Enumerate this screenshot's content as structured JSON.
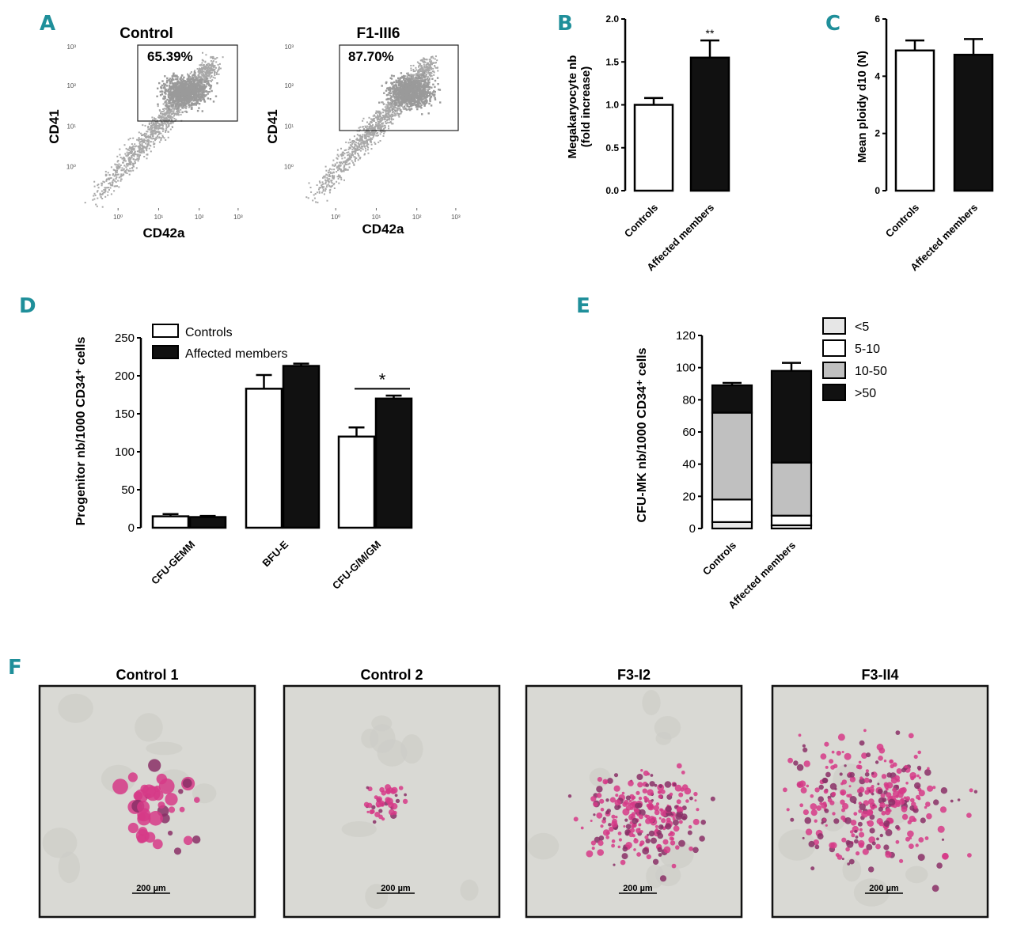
{
  "panel_labels": {
    "a": "A",
    "b": "B",
    "c": "C",
    "d": "D",
    "e": "E",
    "f": "F"
  },
  "colors": {
    "panel_label": "#1f8f9a",
    "controls": "#ffffff",
    "affected": "#111111",
    "e_lt5": "#e6e6e6",
    "e_5_10": "#ffffff",
    "e_10_50": "#c0c0c0",
    "e_gt50": "#111111",
    "stain": "#d63a87",
    "background_micro": "#d9d9d4"
  },
  "chart_data": [
    {
      "panel": "A",
      "type": "scatter",
      "plots": [
        {
          "title": "Control",
          "gate_percent": "65.39%",
          "xlabel": "CD42a",
          "ylabel": "CD41",
          "x_ticks": [
            "10⁰",
            "10¹",
            "10²",
            "10³"
          ],
          "y_ticks": [
            "10⁰",
            "10¹",
            "10²",
            "10³"
          ]
        },
        {
          "title": "F1-III6",
          "gate_percent": "87.70%",
          "xlabel": "CD42a",
          "ylabel": "CD41",
          "x_ticks": [
            "10⁰",
            "10¹",
            "10²",
            "10³"
          ],
          "y_ticks": [
            "10⁰",
            "10¹",
            "10²",
            "10³"
          ]
        }
      ]
    },
    {
      "panel": "B",
      "type": "bar",
      "categories": [
        "Controls",
        "Affected members"
      ],
      "values": [
        1.0,
        1.55
      ],
      "errors": [
        0.08,
        0.2
      ],
      "ylabel_line1": "Megakaryocyte nb",
      "ylabel_line2": "(fold increase)",
      "ylim": [
        0,
        2.0
      ],
      "y_ticks": [
        "0.0",
        "0.5",
        "1.0",
        "1.5",
        "2.0"
      ],
      "significance": "**"
    },
    {
      "panel": "C",
      "type": "bar",
      "categories": [
        "Controls",
        "Affected members"
      ],
      "values": [
        4.9,
        4.75
      ],
      "errors": [
        0.35,
        0.55
      ],
      "ylabel": "Mean ploidy d10 (N)",
      "ylim": [
        0,
        6
      ],
      "y_ticks": [
        "0",
        "2",
        "4",
        "6"
      ]
    },
    {
      "panel": "D",
      "type": "bar",
      "categories": [
        "CFU-GEMM",
        "BFU-E",
        "CFU-G/M/GM"
      ],
      "series": [
        {
          "name": "Controls",
          "values": [
            15,
            183,
            120
          ],
          "errors": [
            3,
            18,
            12
          ]
        },
        {
          "name": "Affected members",
          "values": [
            14,
            213,
            170
          ],
          "errors": [
            1.5,
            3,
            4
          ]
        }
      ],
      "ylabel": "Progenitor nb/1000 CD34⁺ cells",
      "ylim": [
        0,
        250
      ],
      "y_ticks": [
        "0",
        "50",
        "100",
        "150",
        "200",
        "250"
      ],
      "significance": "*"
    },
    {
      "panel": "E",
      "type": "bar",
      "stacked": true,
      "categories": [
        "Controls",
        "Affected members"
      ],
      "series": [
        {
          "name": "<5",
          "values": [
            4,
            2
          ]
        },
        {
          "name": "5-10",
          "values": [
            14,
            6
          ]
        },
        {
          "name": "10-50",
          "values": [
            54,
            33
          ]
        },
        {
          "name": ">50",
          "values": [
            17,
            57
          ]
        }
      ],
      "totals_errors": [
        1.5,
        5
      ],
      "ylabel": "CFU-MK nb/1000 CD34⁺ cells",
      "ylim": [
        0,
        120
      ],
      "y_ticks": [
        "0",
        "20",
        "40",
        "60",
        "80",
        "100",
        "120"
      ]
    }
  ],
  "micrographs": [
    {
      "title": "Control 1",
      "scale": "200 µm"
    },
    {
      "title": "Control 2",
      "scale": "200 µm"
    },
    {
      "title": "F3-I2",
      "scale": "200 µm"
    },
    {
      "title": "F3-II4",
      "scale": "200 µm"
    }
  ]
}
